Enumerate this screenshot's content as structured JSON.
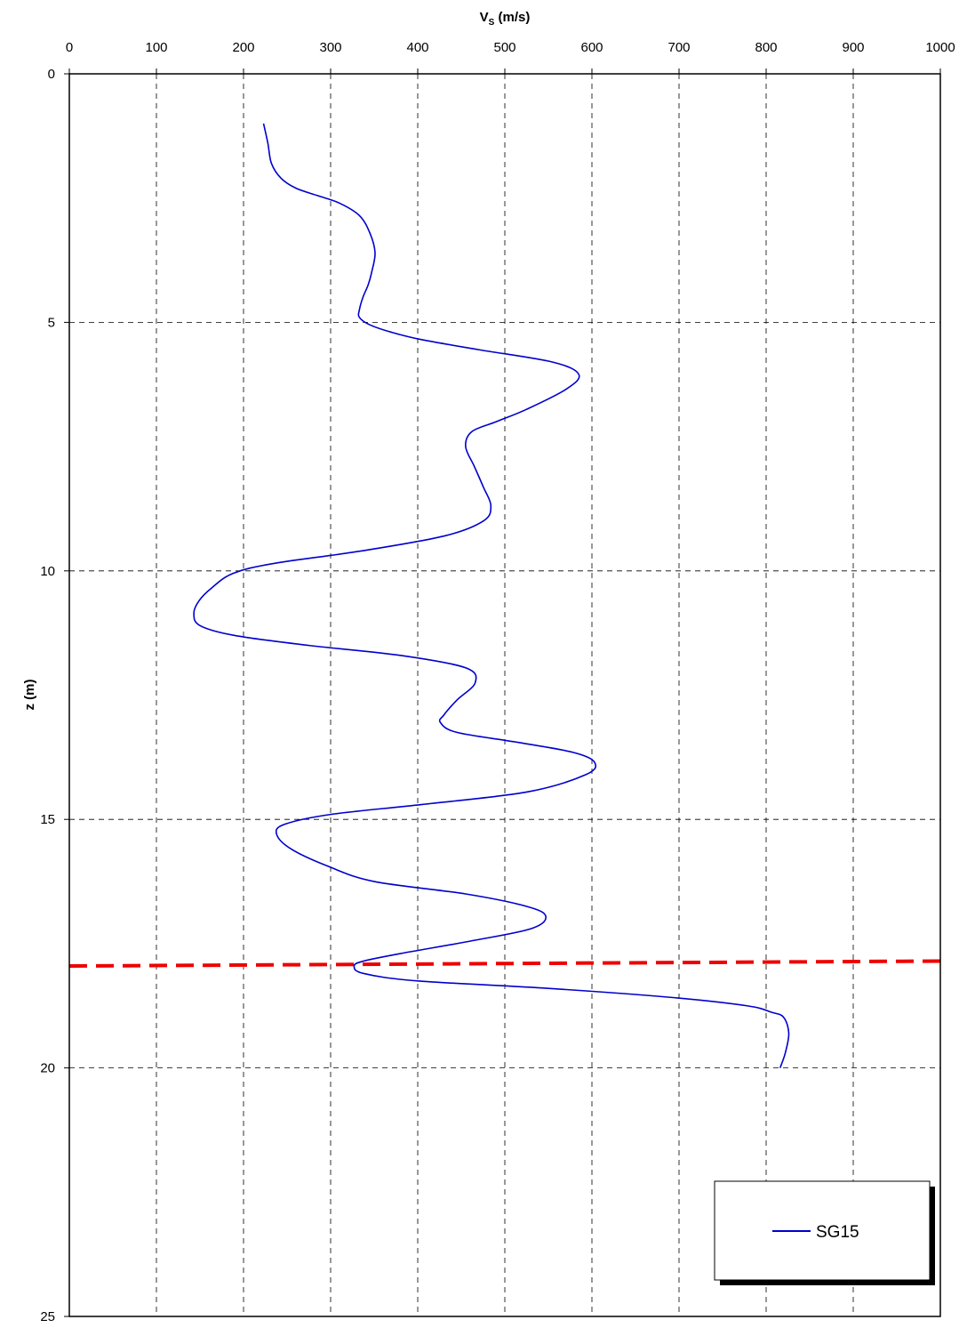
{
  "chart_data": {
    "type": "line",
    "title": "",
    "xlabel_main": "V",
    "xlabel_sub": "S",
    "xlabel_rest": " (m/s)",
    "ylabel": "z (m)",
    "xlim": [
      0,
      1000
    ],
    "ylim": [
      0,
      25
    ],
    "y_inverted": true,
    "x_axis_position": "top",
    "grid": true,
    "grid_style": "dashed",
    "xticks": [
      0,
      100,
      200,
      300,
      400,
      500,
      600,
      700,
      800,
      900,
      1000
    ],
    "yticks": [
      0,
      5,
      10,
      15,
      20,
      25
    ],
    "legend_position": "bottom-right",
    "series": [
      {
        "name": "SG15",
        "color": "#0000cc",
        "points": [
          [
            223,
            1.0
          ],
          [
            228,
            1.4
          ],
          [
            232,
            1.8
          ],
          [
            243,
            2.1
          ],
          [
            260,
            2.3
          ],
          [
            285,
            2.45
          ],
          [
            310,
            2.6
          ],
          [
            333,
            2.85
          ],
          [
            345,
            3.2
          ],
          [
            351,
            3.6
          ],
          [
            347,
            4.0
          ],
          [
            343,
            4.25
          ],
          [
            337,
            4.5
          ],
          [
            333,
            4.75
          ],
          [
            333,
            4.9
          ],
          [
            345,
            5.05
          ],
          [
            370,
            5.2
          ],
          [
            405,
            5.35
          ],
          [
            470,
            5.55
          ],
          [
            555,
            5.8
          ],
          [
            585,
            6.05
          ],
          [
            570,
            6.35
          ],
          [
            525,
            6.75
          ],
          [
            490,
            7.0
          ],
          [
            462,
            7.2
          ],
          [
            455,
            7.5
          ],
          [
            465,
            7.9
          ],
          [
            475,
            8.3
          ],
          [
            484,
            8.7
          ],
          [
            475,
            9.0
          ],
          [
            430,
            9.3
          ],
          [
            335,
            9.6
          ],
          [
            235,
            9.85
          ],
          [
            188,
            10.05
          ],
          [
            163,
            10.35
          ],
          [
            149,
            10.6
          ],
          [
            143,
            10.85
          ],
          [
            150,
            11.1
          ],
          [
            190,
            11.3
          ],
          [
            275,
            11.5
          ],
          [
            380,
            11.7
          ],
          [
            455,
            11.95
          ],
          [
            466,
            12.25
          ],
          [
            445,
            12.6
          ],
          [
            430,
            12.9
          ],
          [
            426,
            13.05
          ],
          [
            445,
            13.25
          ],
          [
            515,
            13.45
          ],
          [
            578,
            13.65
          ],
          [
            603,
            13.85
          ],
          [
            593,
            14.1
          ],
          [
            525,
            14.45
          ],
          [
            405,
            14.7
          ],
          [
            300,
            14.9
          ],
          [
            247,
            15.1
          ],
          [
            238,
            15.3
          ],
          [
            255,
            15.6
          ],
          [
            298,
            15.95
          ],
          [
            350,
            16.25
          ],
          [
            455,
            16.5
          ],
          [
            525,
            16.75
          ],
          [
            547,
            16.95
          ],
          [
            530,
            17.2
          ],
          [
            460,
            17.45
          ],
          [
            380,
            17.7
          ],
          [
            338,
            17.85
          ],
          [
            327,
            17.95
          ],
          [
            338,
            18.1
          ],
          [
            400,
            18.25
          ],
          [
            550,
            18.4
          ],
          [
            690,
            18.58
          ],
          [
            778,
            18.75
          ],
          [
            806,
            18.88
          ],
          [
            820,
            18.98
          ],
          [
            826,
            19.3
          ],
          [
            822,
            19.7
          ],
          [
            816,
            20.0
          ]
        ]
      }
    ],
    "reference_line": {
      "color": "#ee0000",
      "style": "dashed",
      "x_from": 0,
      "z_left": 17.95,
      "x_to": 1000,
      "z_right": 17.85
    }
  }
}
